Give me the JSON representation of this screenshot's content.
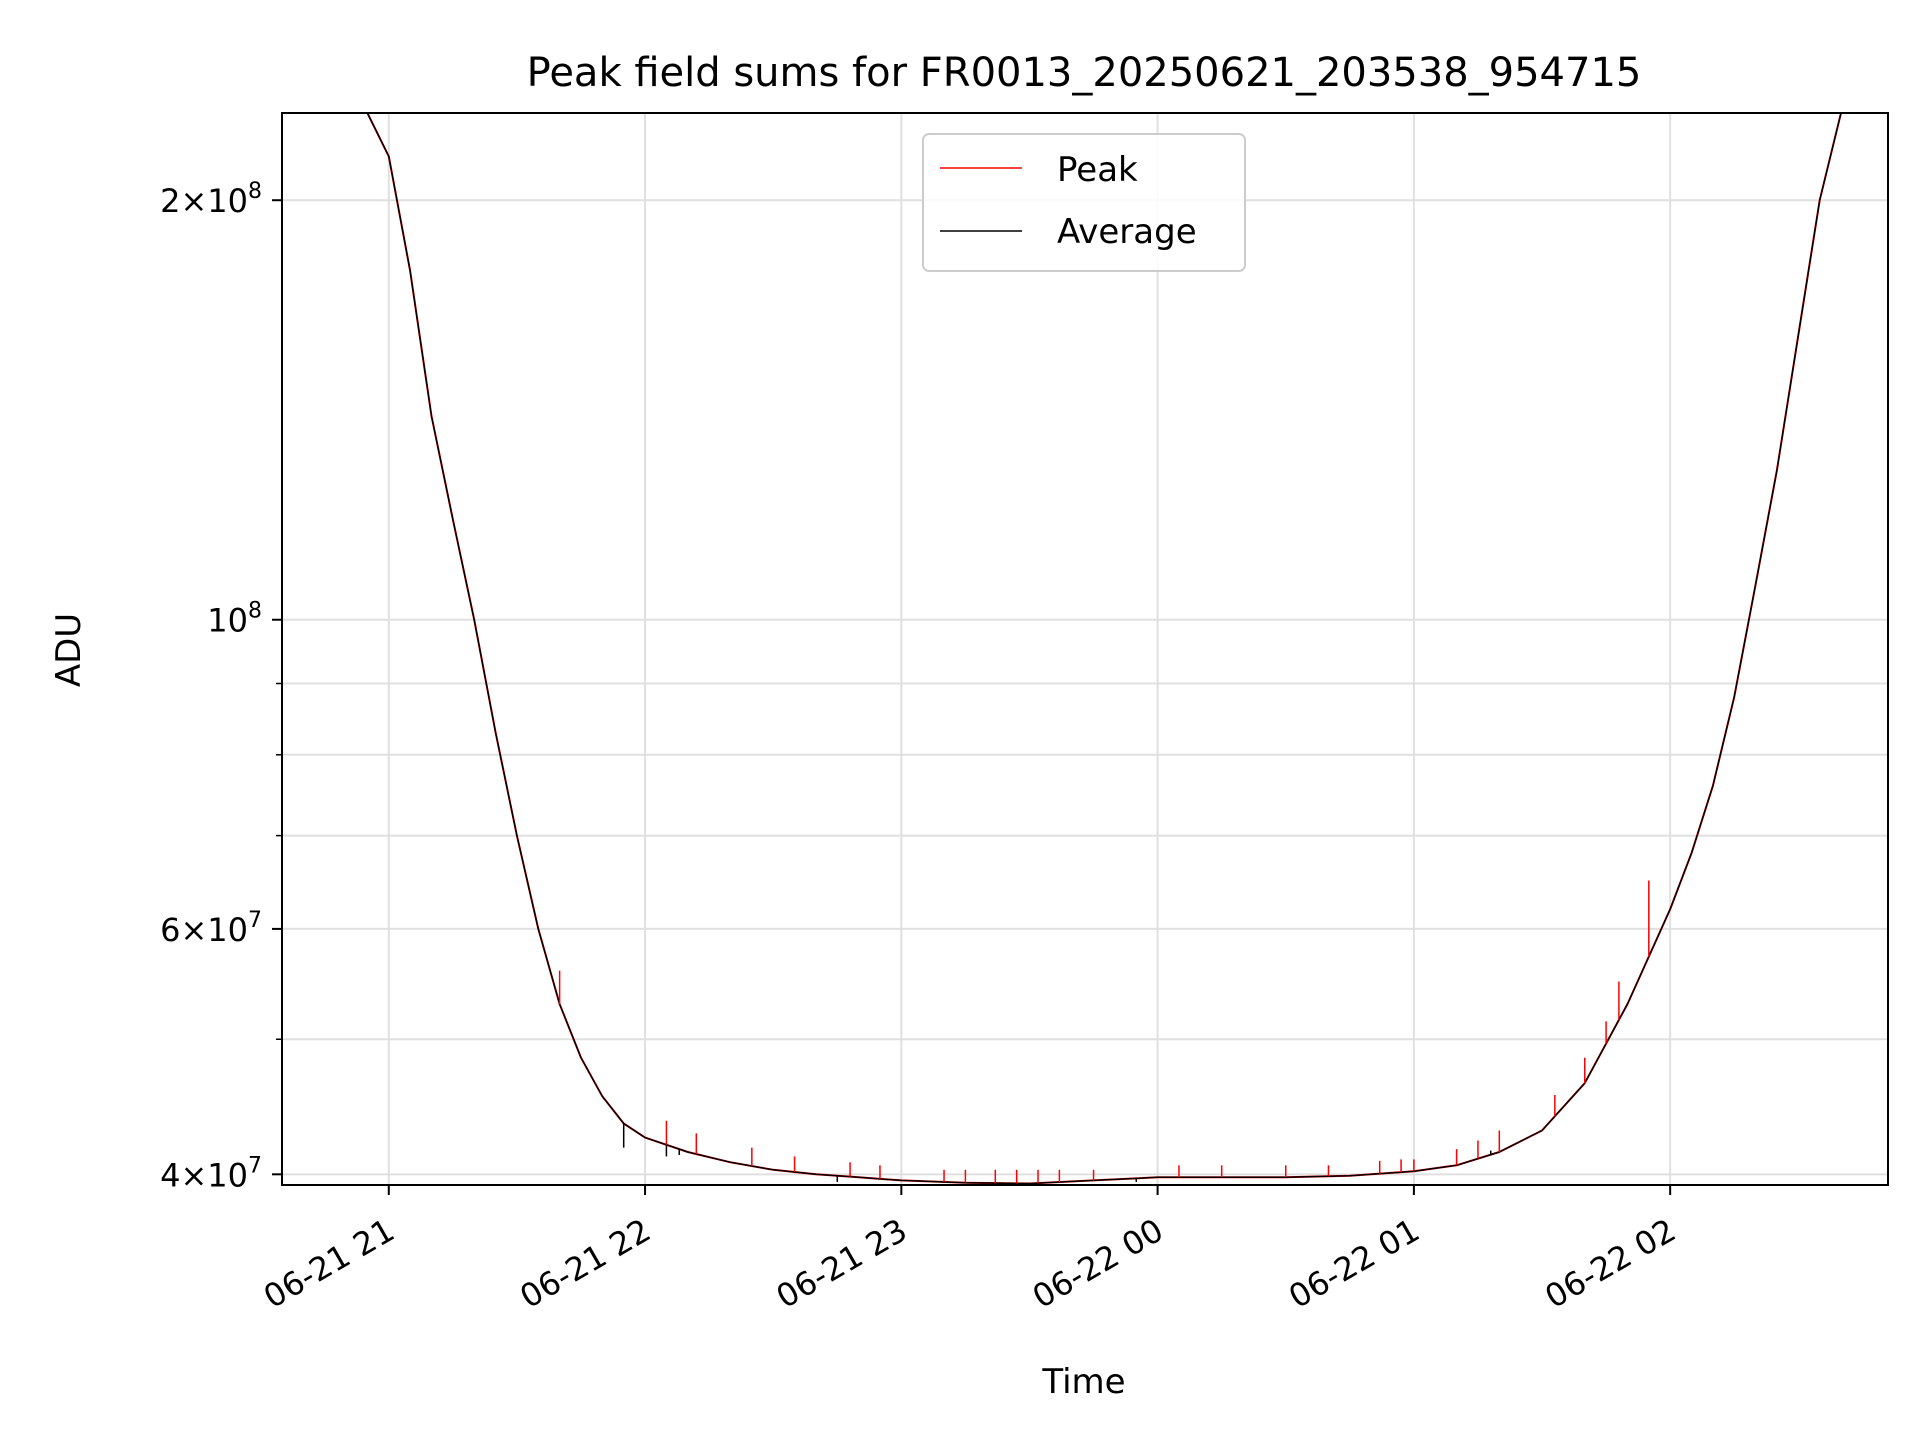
{
  "chart_data": {
    "type": "line",
    "title": "Peak field sums for FR0013_20250621_203538_954715",
    "xlabel": "Time",
    "ylabel": "ADU",
    "y_scale": "log",
    "grid": true,
    "legend_placement": "top-center",
    "x_tick_labels": [
      "06-21 21",
      "06-21 22",
      "06-21 23",
      "06-22 00",
      "06-22 01",
      "06-22 02"
    ],
    "x_ticks": [
      "2025-06-21 21:00",
      "2025-06-21 22:00",
      "2025-06-21 23:00",
      "2025-06-22 00:00",
      "2025-06-22 01:00",
      "2025-06-22 02:00"
    ],
    "xlim": [
      "2025-06-21 20:35",
      "2025-06-22 02:51"
    ],
    "ylim": [
      39300000,
      231000000
    ],
    "y_tick_labels": [
      {
        "value": 40000000,
        "mantissa": "4",
        "exponent": "7"
      },
      {
        "value": 60000000,
        "mantissa": "6",
        "exponent": "7"
      },
      {
        "value": 100000000,
        "mantissa": "",
        "exponent": "8"
      },
      {
        "value": 200000000,
        "mantissa": "2",
        "exponent": "8"
      }
    ],
    "y_minor_ticks": [
      50000000,
      70000000,
      80000000,
      90000000
    ],
    "series": [
      {
        "name": "Peak",
        "color": "#ff0000",
        "x": [
          "2025-06-21 20:35",
          "2025-06-21 20:45",
          "2025-06-21 20:55",
          "2025-06-21 21:00",
          "2025-06-21 21:05",
          "2025-06-21 21:10",
          "2025-06-21 21:15",
          "2025-06-21 21:20",
          "2025-06-21 21:25",
          "2025-06-21 21:30",
          "2025-06-21 21:35",
          "2025-06-21 21:40",
          "2025-06-21 21:45",
          "2025-06-21 21:50",
          "2025-06-21 21:55",
          "2025-06-21 22:00",
          "2025-06-21 22:10",
          "2025-06-21 22:20",
          "2025-06-21 22:30",
          "2025-06-21 22:40",
          "2025-06-21 22:50",
          "2025-06-21 23:00",
          "2025-06-21 23:15",
          "2025-06-21 23:30",
          "2025-06-21 23:45",
          "2025-06-22 00:00",
          "2025-06-22 00:15",
          "2025-06-22 00:30",
          "2025-06-22 00:45",
          "2025-06-22 01:00",
          "2025-06-22 01:10",
          "2025-06-22 01:20",
          "2025-06-22 01:30",
          "2025-06-22 01:40",
          "2025-06-22 01:50",
          "2025-06-22 02:00",
          "2025-06-22 02:05",
          "2025-06-22 02:10",
          "2025-06-22 02:15",
          "2025-06-22 02:20",
          "2025-06-22 02:25",
          "2025-06-22 02:30",
          "2025-06-22 02:35",
          "2025-06-22 02:40",
          "2025-06-22 02:51"
        ],
        "y": [
          231000000,
          231000000,
          231000000,
          215000000,
          178000000,
          140000000,
          118000000,
          100000000,
          83000000,
          70000000,
          60000000,
          53000000,
          48500000,
          45500000,
          43500000,
          42500000,
          41500000,
          40800000,
          40300000,
          40000000,
          39800000,
          39600000,
          39450000,
          39400000,
          39600000,
          39800000,
          39800000,
          39800000,
          39900000,
          40200000,
          40600000,
          41500000,
          43000000,
          46500000,
          53000000,
          62000000,
          68000000,
          76000000,
          88000000,
          106000000,
          128000000,
          160000000,
          200000000,
          231000000,
          231000000
        ],
        "spikes": [
          {
            "x": "2025-06-21 21:40",
            "peak": 56000000
          },
          {
            "x": "2025-06-21 22:05",
            "peak": 43700000
          },
          {
            "x": "2025-06-21 22:12",
            "peak": 42800000
          },
          {
            "x": "2025-06-21 22:25",
            "peak": 41800000
          },
          {
            "x": "2025-06-21 22:35",
            "peak": 41200000
          },
          {
            "x": "2025-06-21 22:48",
            "peak": 40800000
          },
          {
            "x": "2025-06-21 22:55",
            "peak": 40600000
          },
          {
            "x": "2025-06-21 23:10",
            "peak": 40300000
          },
          {
            "x": "2025-06-21 23:15",
            "peak": 40300000
          },
          {
            "x": "2025-06-21 23:22",
            "peak": 40300000
          },
          {
            "x": "2025-06-21 23:27",
            "peak": 40300000
          },
          {
            "x": "2025-06-21 23:32",
            "peak": 40300000
          },
          {
            "x": "2025-06-21 23:37",
            "peak": 40300000
          },
          {
            "x": "2025-06-21 23:45",
            "peak": 40300000
          },
          {
            "x": "2025-06-22 00:05",
            "peak": 40600000
          },
          {
            "x": "2025-06-22 00:15",
            "peak": 40600000
          },
          {
            "x": "2025-06-22 00:30",
            "peak": 40600000
          },
          {
            "x": "2025-06-22 00:40",
            "peak": 40600000
          },
          {
            "x": "2025-06-22 00:52",
            "peak": 40900000
          },
          {
            "x": "2025-06-22 00:57",
            "peak": 41000000
          },
          {
            "x": "2025-06-22 01:00",
            "peak": 41000000
          },
          {
            "x": "2025-06-22 01:10",
            "peak": 41700000
          },
          {
            "x": "2025-06-22 01:15",
            "peak": 42300000
          },
          {
            "x": "2025-06-22 01:20",
            "peak": 43000000
          },
          {
            "x": "2025-06-22 01:33",
            "peak": 45600000
          },
          {
            "x": "2025-06-22 01:40",
            "peak": 48500000
          },
          {
            "x": "2025-06-22 01:45",
            "peak": 51500000
          },
          {
            "x": "2025-06-22 01:48",
            "peak": 55000000
          },
          {
            "x": "2025-06-22 01:55",
            "peak": 65000000
          }
        ]
      },
      {
        "name": "Average",
        "color": "#000000",
        "x": [
          "2025-06-21 20:35",
          "2025-06-21 20:45",
          "2025-06-21 20:55",
          "2025-06-21 21:00",
          "2025-06-21 21:05",
          "2025-06-21 21:10",
          "2025-06-21 21:15",
          "2025-06-21 21:20",
          "2025-06-21 21:25",
          "2025-06-21 21:30",
          "2025-06-21 21:35",
          "2025-06-21 21:40",
          "2025-06-21 21:45",
          "2025-06-21 21:50",
          "2025-06-21 21:55",
          "2025-06-21 22:00",
          "2025-06-21 22:10",
          "2025-06-21 22:20",
          "2025-06-21 22:30",
          "2025-06-21 22:40",
          "2025-06-21 22:50",
          "2025-06-21 23:00",
          "2025-06-21 23:15",
          "2025-06-21 23:30",
          "2025-06-21 23:45",
          "2025-06-22 00:00",
          "2025-06-22 00:15",
          "2025-06-22 00:30",
          "2025-06-22 00:45",
          "2025-06-22 01:00",
          "2025-06-22 01:10",
          "2025-06-22 01:20",
          "2025-06-22 01:30",
          "2025-06-22 01:40",
          "2025-06-22 01:50",
          "2025-06-22 02:00",
          "2025-06-22 02:05",
          "2025-06-22 02:10",
          "2025-06-22 02:15",
          "2025-06-22 02:20",
          "2025-06-22 02:25",
          "2025-06-22 02:30",
          "2025-06-22 02:35",
          "2025-06-22 02:40",
          "2025-06-22 02:51"
        ],
        "y": [
          231000000,
          231000000,
          231000000,
          215000000,
          178000000,
          140000000,
          118000000,
          100000000,
          83000000,
          70000000,
          60000000,
          53000000,
          48500000,
          45500000,
          43500000,
          42500000,
          41500000,
          40800000,
          40300000,
          40000000,
          39800000,
          39600000,
          39450000,
          39400000,
          39600000,
          39800000,
          39800000,
          39800000,
          39900000,
          40200000,
          40600000,
          41500000,
          43000000,
          46500000,
          53000000,
          62000000,
          68000000,
          76000000,
          88000000,
          106000000,
          128000000,
          160000000,
          200000000,
          231000000,
          231000000
        ],
        "dips": [
          {
            "x": "2025-06-21 21:55",
            "low": 41800000
          },
          {
            "x": "2025-06-21 22:05",
            "low": 41200000
          },
          {
            "x": "2025-06-21 22:08",
            "low": 41300000
          },
          {
            "x": "2025-06-21 22:45",
            "low": 39500000
          },
          {
            "x": "2025-06-21 23:55",
            "low": 39500000
          },
          {
            "x": "2025-06-22 01:18",
            "low": 41600000
          }
        ]
      }
    ]
  }
}
